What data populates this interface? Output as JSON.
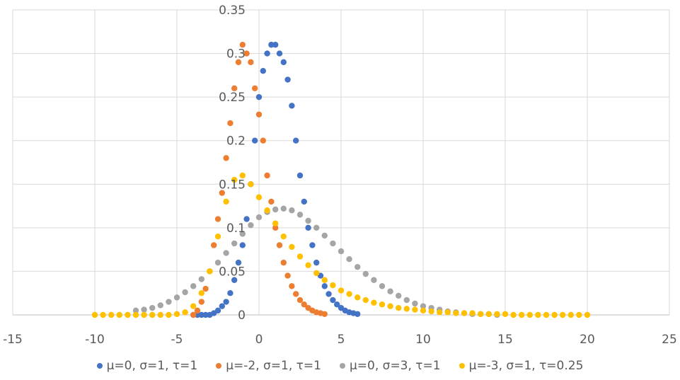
{
  "chart_data": {
    "type": "scatter",
    "title": "",
    "xlabel": "",
    "ylabel": "",
    "xlim": [
      -15,
      25
    ],
    "ylim": [
      0,
      0.35
    ],
    "x_ticks": [
      "-15",
      "-10",
      "-5",
      "0",
      "5",
      "10",
      "15",
      "20",
      "25"
    ],
    "y_ticks": [
      "0",
      "0.05",
      "0.1",
      "0.15",
      "0.2",
      "0.25",
      "0.3",
      "0.35"
    ],
    "grid": true,
    "legend_position": "bottom",
    "series": [
      {
        "name": "μ=0, σ=1, τ=1",
        "color": "#4472C4",
        "points": [
          [
            -4,
            0
          ],
          [
            -3.75,
            0
          ],
          [
            -3.5,
            0
          ],
          [
            -3.25,
            0
          ],
          [
            -3,
            0
          ],
          [
            -2.75,
            0.002
          ],
          [
            -2.5,
            0.005
          ],
          [
            -2.25,
            0.01
          ],
          [
            -2,
            0.015
          ],
          [
            -1.75,
            0.025
          ],
          [
            -1.5,
            0.04
          ],
          [
            -1.25,
            0.06
          ],
          [
            -1,
            0.08
          ],
          [
            -0.75,
            0.11
          ],
          [
            -0.5,
            0.15
          ],
          [
            -0.25,
            0.2
          ],
          [
            0,
            0.25
          ],
          [
            0.25,
            0.28
          ],
          [
            0.5,
            0.3
          ],
          [
            0.75,
            0.31
          ],
          [
            1,
            0.31
          ],
          [
            1.25,
            0.3
          ],
          [
            1.5,
            0.29
          ],
          [
            1.75,
            0.27
          ],
          [
            2,
            0.24
          ],
          [
            2.25,
            0.2
          ],
          [
            2.5,
            0.16
          ],
          [
            2.75,
            0.13
          ],
          [
            3,
            0.1
          ],
          [
            3.25,
            0.08
          ],
          [
            3.5,
            0.06
          ],
          [
            3.75,
            0.045
          ],
          [
            4,
            0.033
          ],
          [
            4.25,
            0.024
          ],
          [
            4.5,
            0.017
          ],
          [
            4.75,
            0.012
          ],
          [
            5,
            0.008
          ],
          [
            5.25,
            0.005
          ],
          [
            5.5,
            0.003
          ],
          [
            5.75,
            0.002
          ],
          [
            6,
            0.001
          ]
        ]
      },
      {
        "name": "μ=-2, σ=1, τ=1",
        "color": "#ED7D31",
        "points": [
          [
            -4,
            0
          ],
          [
            -3.75,
            0.005
          ],
          [
            -3.5,
            0.015
          ],
          [
            -3.25,
            0.03
          ],
          [
            -3,
            0.05
          ],
          [
            -2.75,
            0.08
          ],
          [
            -2.5,
            0.11
          ],
          [
            -2.25,
            0.14
          ],
          [
            -2,
            0.18
          ],
          [
            -1.75,
            0.22
          ],
          [
            -1.5,
            0.26
          ],
          [
            -1.25,
            0.29
          ],
          [
            -1,
            0.31
          ],
          [
            -0.75,
            0.3
          ],
          [
            -0.5,
            0.29
          ],
          [
            -0.25,
            0.26
          ],
          [
            0,
            0.23
          ],
          [
            0.25,
            0.2
          ],
          [
            0.5,
            0.16
          ],
          [
            0.75,
            0.13
          ],
          [
            1,
            0.1
          ],
          [
            1.25,
            0.08
          ],
          [
            1.5,
            0.06
          ],
          [
            1.75,
            0.045
          ],
          [
            2,
            0.033
          ],
          [
            2.25,
            0.024
          ],
          [
            2.5,
            0.017
          ],
          [
            2.75,
            0.012
          ],
          [
            3,
            0.008
          ],
          [
            3.25,
            0.005
          ],
          [
            3.5,
            0.003
          ],
          [
            3.75,
            0.002
          ],
          [
            4,
            0.001
          ]
        ]
      },
      {
        "name": "μ=0, σ=3, τ=1",
        "color": "#A5A5A5",
        "points": [
          [
            -7.5,
            0.005
          ],
          [
            -7,
            0.006
          ],
          [
            -6.5,
            0.008
          ],
          [
            -6,
            0.011
          ],
          [
            -5.5,
            0.015
          ],
          [
            -5,
            0.02
          ],
          [
            -4.5,
            0.026
          ],
          [
            -4,
            0.033
          ],
          [
            -3.5,
            0.041
          ],
          [
            -3,
            0.05
          ],
          [
            -2.5,
            0.06
          ],
          [
            -2,
            0.071
          ],
          [
            -1.5,
            0.082
          ],
          [
            -1,
            0.093
          ],
          [
            -0.5,
            0.103
          ],
          [
            0,
            0.112
          ],
          [
            0.5,
            0.118
          ],
          [
            1,
            0.121
          ],
          [
            1.5,
            0.122
          ],
          [
            2,
            0.12
          ],
          [
            2.5,
            0.115
          ],
          [
            3,
            0.108
          ],
          [
            3.5,
            0.1
          ],
          [
            4,
            0.091
          ],
          [
            4.5,
            0.082
          ],
          [
            5,
            0.073
          ],
          [
            5.5,
            0.064
          ],
          [
            6,
            0.055
          ],
          [
            6.5,
            0.047
          ],
          [
            7,
            0.04
          ],
          [
            7.5,
            0.033
          ],
          [
            8,
            0.027
          ],
          [
            8.5,
            0.022
          ],
          [
            9,
            0.017
          ],
          [
            9.5,
            0.013
          ],
          [
            10,
            0.01
          ],
          [
            10.5,
            0.008
          ],
          [
            11,
            0.006
          ],
          [
            11.5,
            0.004
          ],
          [
            12,
            0.003
          ],
          [
            12.5,
            0.002
          ],
          [
            13,
            0.001
          ],
          [
            13.5,
            0.001
          ],
          [
            14,
            0.001
          ],
          [
            14.5,
            0
          ]
        ]
      },
      {
        "name": "μ=-3, σ=1, τ=0.25",
        "color": "#FFC000",
        "points": [
          [
            -10,
            0
          ],
          [
            -9.5,
            0
          ],
          [
            -9,
            0
          ],
          [
            -8.5,
            0
          ],
          [
            -8,
            0
          ],
          [
            -7.5,
            0
          ],
          [
            -7,
            0
          ],
          [
            -6.5,
            0
          ],
          [
            -6,
            0
          ],
          [
            -5.5,
            0
          ],
          [
            -5,
            0.001
          ],
          [
            -4.5,
            0.003
          ],
          [
            -4,
            0.01
          ],
          [
            -3.5,
            0.025
          ],
          [
            -3,
            0.05
          ],
          [
            -2.5,
            0.09
          ],
          [
            -2,
            0.13
          ],
          [
            -1.5,
            0.155
          ],
          [
            -1,
            0.16
          ],
          [
            -0.5,
            0.15
          ],
          [
            0,
            0.135
          ],
          [
            0.5,
            0.12
          ],
          [
            1,
            0.105
          ],
          [
            1.5,
            0.09
          ],
          [
            2,
            0.078
          ],
          [
            2.5,
            0.067
          ],
          [
            3,
            0.057
          ],
          [
            3.5,
            0.048
          ],
          [
            4,
            0.04
          ],
          [
            4.5,
            0.034
          ],
          [
            5,
            0.028
          ],
          [
            5.5,
            0.024
          ],
          [
            6,
            0.02
          ],
          [
            6.5,
            0.017
          ],
          [
            7,
            0.014
          ],
          [
            7.5,
            0.012
          ],
          [
            8,
            0.01
          ],
          [
            8.5,
            0.008
          ],
          [
            9,
            0.007
          ],
          [
            9.5,
            0.006
          ],
          [
            10,
            0.005
          ],
          [
            10.5,
            0.004
          ],
          [
            11,
            0.003
          ],
          [
            11.5,
            0.003
          ],
          [
            12,
            0.002
          ],
          [
            12.5,
            0.002
          ],
          [
            13,
            0.002
          ],
          [
            13.5,
            0.001
          ],
          [
            14,
            0.001
          ],
          [
            14.5,
            0.001
          ],
          [
            15,
            0.001
          ],
          [
            15.5,
            0
          ],
          [
            16,
            0
          ],
          [
            16.5,
            0
          ],
          [
            17,
            0
          ],
          [
            17.5,
            0
          ],
          [
            18,
            0
          ],
          [
            18.5,
            0
          ],
          [
            19,
            0
          ],
          [
            19.5,
            0
          ],
          [
            20,
            0
          ]
        ]
      }
    ]
  }
}
